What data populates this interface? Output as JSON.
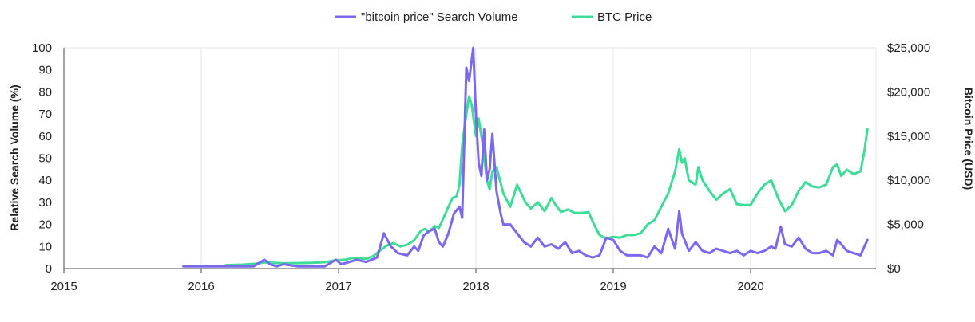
{
  "chart_data": {
    "type": "line",
    "title": "",
    "legend": {
      "position": "top-center"
    },
    "x_axis": {
      "tick_labels": [
        "2015",
        "2016",
        "2017",
        "2018",
        "2019",
        "2020"
      ],
      "tick_values": [
        2015,
        2016,
        2017,
        2018,
        2019,
        2020
      ],
      "range": [
        2015,
        2020.85
      ]
    },
    "y_left": {
      "label": "Relative Search Volume (%)",
      "range": [
        0,
        100
      ],
      "tick_labels": [
        "0",
        "10",
        "20",
        "30",
        "40",
        "50",
        "60",
        "70",
        "80",
        "90",
        "100"
      ],
      "tick_values": [
        0,
        10,
        20,
        30,
        40,
        50,
        60,
        70,
        80,
        90,
        100
      ]
    },
    "y_right": {
      "label": "Bitcoin Price (USD)",
      "range": [
        0,
        25000
      ],
      "tick_labels": [
        "$0",
        "$5,000",
        "$10,000",
        "$15,000",
        "$20,000",
        "$25,000"
      ],
      "tick_values": [
        0,
        5000,
        10000,
        15000,
        20000,
        25000
      ]
    },
    "grid": true,
    "series": [
      {
        "name": "\"bitcoin price\" Search Volume",
        "axis": "left",
        "color": "#7b68ee",
        "x": [
          2015.87,
          2016.0,
          2016.2,
          2016.38,
          2016.46,
          2016.5,
          2016.55,
          2016.6,
          2016.7,
          2016.8,
          2016.9,
          2016.98,
          2017.02,
          2017.08,
          2017.13,
          2017.2,
          2017.28,
          2017.33,
          2017.38,
          2017.4,
          2017.43,
          2017.5,
          2017.55,
          2017.58,
          2017.62,
          2017.66,
          2017.7,
          2017.73,
          2017.76,
          2017.8,
          2017.84,
          2017.88,
          2017.9,
          2017.93,
          2017.95,
          2017.98,
          2018.0,
          2018.02,
          2018.04,
          2018.06,
          2018.08,
          2018.1,
          2018.12,
          2018.15,
          2018.18,
          2018.2,
          2018.25,
          2018.3,
          2018.35,
          2018.4,
          2018.45,
          2018.5,
          2018.55,
          2018.6,
          2018.65,
          2018.7,
          2018.75,
          2018.8,
          2018.85,
          2018.9,
          2018.95,
          2019.0,
          2019.05,
          2019.1,
          2019.2,
          2019.25,
          2019.3,
          2019.35,
          2019.4,
          2019.45,
          2019.48,
          2019.5,
          2019.55,
          2019.6,
          2019.65,
          2019.7,
          2019.75,
          2019.8,
          2019.85,
          2019.9,
          2019.95,
          2020.0,
          2020.05,
          2020.1,
          2020.15,
          2020.18,
          2020.22,
          2020.25,
          2020.3,
          2020.35,
          2020.4,
          2020.45,
          2020.5,
          2020.55,
          2020.6,
          2020.63,
          2020.66,
          2020.7,
          2020.75,
          2020.8,
          2020.85
        ],
        "values": [
          1,
          1,
          1,
          1,
          4,
          2,
          1,
          2,
          1,
          1,
          1,
          4,
          2,
          3,
          4,
          3,
          5,
          16,
          10,
          9,
          7,
          6,
          10,
          8,
          15,
          17,
          18,
          12,
          10,
          16,
          25,
          28,
          23,
          91,
          85,
          100,
          70,
          48,
          42,
          63,
          40,
          45,
          61,
          35,
          25,
          20,
          20,
          16,
          12,
          10,
          14,
          10,
          11,
          9,
          12,
          7,
          8,
          6,
          5,
          6,
          14,
          13,
          8,
          6,
          6,
          5,
          10,
          7,
          18,
          9,
          26,
          16,
          8,
          12,
          8,
          7,
          9,
          8,
          7,
          8,
          6,
          8,
          7,
          8,
          10,
          9,
          19,
          11,
          10,
          14,
          9,
          7,
          7,
          8,
          6,
          13,
          11,
          8,
          7,
          6,
          13
        ]
      },
      {
        "name": "BTC Price",
        "axis": "right",
        "color": "#3ddc97",
        "x": [
          2016.18,
          2016.3,
          2016.4,
          2016.46,
          2016.52,
          2016.6,
          2016.7,
          2016.8,
          2016.9,
          2016.98,
          2017.05,
          2017.1,
          2017.15,
          2017.2,
          2017.25,
          2017.3,
          2017.35,
          2017.4,
          2017.45,
          2017.5,
          2017.55,
          2017.6,
          2017.63,
          2017.66,
          2017.7,
          2017.73,
          2017.76,
          2017.8,
          2017.83,
          2017.86,
          2017.88,
          2017.9,
          2017.93,
          2017.95,
          2017.97,
          2018.0,
          2018.02,
          2018.05,
          2018.08,
          2018.1,
          2018.12,
          2018.15,
          2018.2,
          2018.25,
          2018.28,
          2018.3,
          2018.33,
          2018.36,
          2018.4,
          2018.45,
          2018.5,
          2018.55,
          2018.58,
          2018.62,
          2018.67,
          2018.72,
          2018.77,
          2018.82,
          2018.86,
          2018.9,
          2018.95,
          2019.0,
          2019.05,
          2019.1,
          2019.15,
          2019.2,
          2019.25,
          2019.3,
          2019.35,
          2019.4,
          2019.45,
          2019.48,
          2019.5,
          2019.52,
          2019.55,
          2019.6,
          2019.62,
          2019.65,
          2019.7,
          2019.75,
          2019.8,
          2019.85,
          2019.9,
          2019.95,
          2020.0,
          2020.05,
          2020.1,
          2020.15,
          2020.2,
          2020.25,
          2020.3,
          2020.35,
          2020.4,
          2020.45,
          2020.5,
          2020.55,
          2020.6,
          2020.63,
          2020.66,
          2020.7,
          2020.75,
          2020.8,
          2020.83,
          2020.85
        ],
        "values": [
          400,
          450,
          550,
          700,
          650,
          600,
          620,
          650,
          720,
          950,
          1000,
          1200,
          1150,
          1100,
          1400,
          2000,
          2600,
          2900,
          2500,
          2700,
          3200,
          4300,
          4500,
          4200,
          4800,
          4600,
          5600,
          7000,
          8000,
          8200,
          9500,
          14000,
          17500,
          19500,
          18500,
          15000,
          17000,
          14000,
          10000,
          9000,
          11000,
          11500,
          8500,
          7000,
          8500,
          9500,
          8500,
          7500,
          6800,
          7500,
          6500,
          8000,
          7200,
          6400,
          6700,
          6300,
          6300,
          6400,
          5000,
          3800,
          3400,
          3600,
          3500,
          3800,
          3800,
          4000,
          5000,
          5500,
          7000,
          8500,
          11000,
          13500,
          12000,
          12500,
          10000,
          9500,
          11500,
          10000,
          8800,
          7800,
          8500,
          9000,
          7300,
          7200,
          7200,
          8500,
          9500,
          10000,
          8000,
          6500,
          7200,
          8800,
          9800,
          9300,
          9200,
          9500,
          11500,
          11800,
          10500,
          11200,
          10700,
          11000,
          13500,
          15800
        ]
      }
    ]
  }
}
